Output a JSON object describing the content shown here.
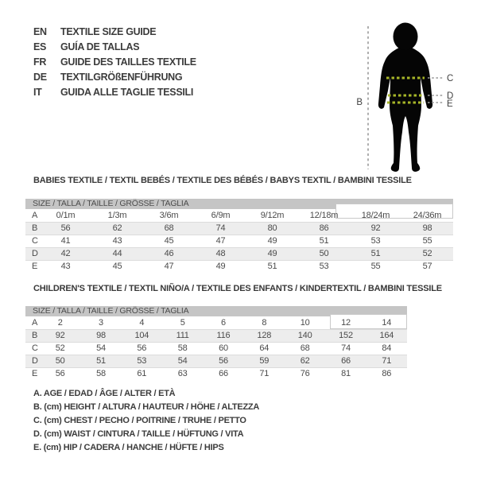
{
  "languages": [
    {
      "code": "EN",
      "title": "TEXTILE SIZE GUIDE"
    },
    {
      "code": "ES",
      "title": "GUÍA DE TALLAS"
    },
    {
      "code": "FR",
      "title": "GUIDE DES TAILLES TEXTILE"
    },
    {
      "code": "DE",
      "title": "TEXTILGRÖßENFÜHRUNG"
    },
    {
      "code": "IT",
      "title": "GUIDA ALLE TAGLIE TESSILI"
    }
  ],
  "figure": {
    "labels": {
      "height": "B",
      "chest": "C",
      "waist": "D",
      "hip": "E"
    },
    "colors": {
      "silhouette": "#050505",
      "measure_dash": "#a6b528",
      "guide_dash": "#9a9a9a",
      "label_text": "#3f3f3f"
    }
  },
  "babies_table": {
    "title": "BABIES TEXTILE / TEXTIL BEBÉS / TEXTILE DES BÉBÉS / BABYS TEXTIL / BAMBINI TESSILE",
    "header": "SIZE / TALLA / TAILLE / GRÖSSE / TAGLIA",
    "rows": [
      {
        "label": "A",
        "values": [
          "0/1m",
          "1/3m",
          "3/6m",
          "6/9m",
          "9/12m",
          "12/18m",
          "18/24m",
          "24/36m"
        ]
      },
      {
        "label": "B",
        "values": [
          "56",
          "62",
          "68",
          "74",
          "80",
          "86",
          "92",
          "98"
        ]
      },
      {
        "label": "C",
        "values": [
          "41",
          "43",
          "45",
          "47",
          "49",
          "51",
          "53",
          "55"
        ]
      },
      {
        "label": "D",
        "values": [
          "42",
          "44",
          "46",
          "48",
          "49",
          "50",
          "51",
          "52"
        ]
      },
      {
        "label": "E",
        "values": [
          "43",
          "45",
          "47",
          "49",
          "51",
          "53",
          "55",
          "57"
        ]
      }
    ]
  },
  "children_table": {
    "title": "CHILDREN'S TEXTILE / TEXTIL NIÑO/A / TEXTILE DES ENFANTS / KINDERTEXTIL / BAMBINI TESSILE",
    "header": "SIZE / TALLA / TAILLE / GRÖSSE / TAGLIA",
    "rows": [
      {
        "label": "A",
        "values": [
          "2",
          "3",
          "4",
          "5",
          "6",
          "8",
          "10",
          "12",
          "14"
        ]
      },
      {
        "label": "B",
        "values": [
          "92",
          "98",
          "104",
          "111",
          "116",
          "128",
          "140",
          "152",
          "164"
        ]
      },
      {
        "label": "C",
        "values": [
          "52",
          "54",
          "56",
          "58",
          "60",
          "64",
          "68",
          "74",
          "84"
        ]
      },
      {
        "label": "D",
        "values": [
          "50",
          "51",
          "53",
          "54",
          "56",
          "59",
          "62",
          "66",
          "71"
        ]
      },
      {
        "label": "E",
        "values": [
          "56",
          "58",
          "61",
          "63",
          "66",
          "71",
          "76",
          "81",
          "86"
        ]
      }
    ]
  },
  "legend": [
    "A. AGE / EDAD / ÂGE / ALTER / ETÀ",
    "B. (cm) HEIGHT / ALTURA / HAUTEUR / HÖHE / ALTEZZA",
    "C. (cm) CHEST / PECHO / POITRINE / TRUHE / PETTO",
    "D. (cm) WAIST / CINTURA / TAILLE / HÜFTUNG / VITA",
    "E. (cm) HIP / CADERA / HANCHE / HÜFTE / HIPS"
  ]
}
